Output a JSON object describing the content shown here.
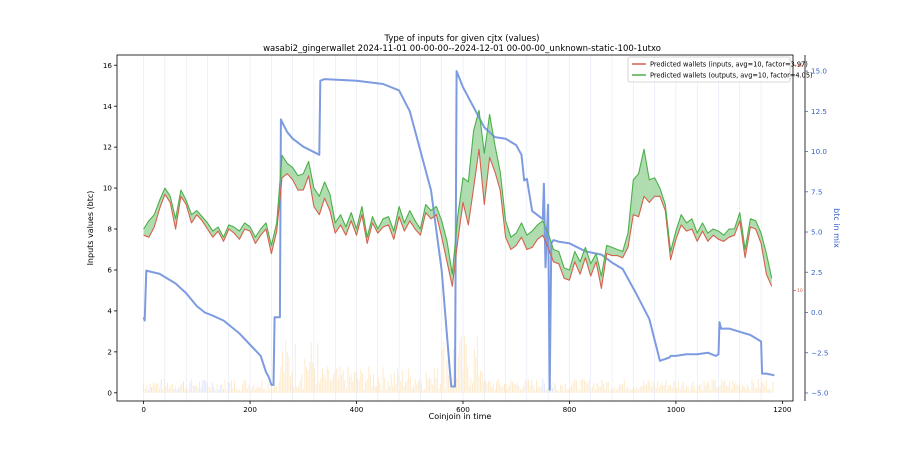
{
  "chart_data": {
    "type": "line",
    "title": "Type of inputs for given cjtx (values)",
    "subtitle": "wasabi2_gingerwallet 2024-11-01 00-00-00--2024-12-01 00-00-00_unknown-static-100-1utxo",
    "xlabel": "Coinjoin in time",
    "ylabel": "Inputs values (btc)",
    "ylabel_right": "btc in mix",
    "xlim": [
      -50,
      1220
    ],
    "ylim": [
      -0.4,
      16.5
    ],
    "ylim_right": [
      -5.5,
      16.0
    ],
    "x_ticks": [
      0,
      200,
      400,
      600,
      800,
      1000,
      1200
    ],
    "y_ticks": [
      0,
      2,
      4,
      6,
      8,
      10,
      12,
      14,
      16
    ],
    "y_ticks_right": [
      -5.0,
      -2.5,
      0.0,
      2.5,
      5.0,
      7.5,
      10.0,
      12.5,
      15.0
    ],
    "y_tick_labels_right": [
      "−5.0",
      "−2.5",
      "0.0",
      "2.5",
      "5.0",
      "7.5",
      "10.0",
      "12.5",
      "15.0"
    ],
    "right_axis_red_ticks": [
      {
        "label": "16",
        "y": 16.0
      },
      {
        "label": "10",
        "y": 5.0
      }
    ],
    "legend_position": "top-right",
    "colors": {
      "inputs": "#d6604d",
      "outputs": "#4daf4a",
      "fill": "#8fce8f",
      "mix": "#7d9be0",
      "bars": "#fdd9a0",
      "bars_blue": "#c8d2f8"
    },
    "series": [
      {
        "name": "Predicted wallets (inputs, avg=10, factor=3.97)",
        "color": "#d6604d",
        "x": [
          0,
          10,
          20,
          30,
          40,
          50,
          60,
          70,
          80,
          90,
          100,
          110,
          120,
          130,
          140,
          150,
          160,
          170,
          180,
          190,
          200,
          210,
          220,
          230,
          240,
          250,
          260,
          270,
          280,
          290,
          300,
          310,
          320,
          330,
          340,
          350,
          360,
          370,
          380,
          390,
          400,
          410,
          420,
          430,
          440,
          450,
          460,
          470,
          480,
          490,
          500,
          510,
          520,
          530,
          540,
          550,
          560,
          570,
          580,
          590,
          600,
          610,
          620,
          630,
          640,
          650,
          660,
          670,
          680,
          690,
          700,
          710,
          720,
          730,
          740,
          750,
          760,
          770,
          780,
          790,
          800,
          810,
          820,
          830,
          840,
          850,
          860,
          870,
          880,
          890,
          900,
          910,
          920,
          930,
          940,
          950,
          960,
          970,
          980,
          990,
          1000,
          1010,
          1020,
          1030,
          1040,
          1050,
          1060,
          1070,
          1080,
          1090,
          1100,
          1110,
          1120,
          1130,
          1140,
          1150,
          1160,
          1170,
          1180
        ],
        "values": [
          7.7,
          7.6,
          8.1,
          9.0,
          9.7,
          9.3,
          8.0,
          9.6,
          9.2,
          8.3,
          8.7,
          8.4,
          8.0,
          7.6,
          7.9,
          7.4,
          8.0,
          7.8,
          7.5,
          8.0,
          7.9,
          7.3,
          7.7,
          8.0,
          6.8,
          7.9,
          10.5,
          10.7,
          10.4,
          9.9,
          9.9,
          10.6,
          9.1,
          8.7,
          9.5,
          8.9,
          7.8,
          8.2,
          7.7,
          8.4,
          7.7,
          8.7,
          7.3,
          8.3,
          7.8,
          8.1,
          8.2,
          7.5,
          8.6,
          7.9,
          8.4,
          8.0,
          7.7,
          8.8,
          8.5,
          8.7,
          7.6,
          6.4,
          5.2,
          7.4,
          9.3,
          8.2,
          10.0,
          11.9,
          9.2,
          11.5,
          10.8,
          9.9,
          7.6,
          7.0,
          7.2,
          7.6,
          7.0,
          7.1,
          7.5,
          7.7,
          7.1,
          6.4,
          6.3,
          5.6,
          5.5,
          6.4,
          5.8,
          6.6,
          5.7,
          6.4,
          5.1,
          6.8,
          6.7,
          6.7,
          6.6,
          7.1,
          8.7,
          8.6,
          9.6,
          9.3,
          9.6,
          9.6,
          8.9,
          6.5,
          7.5,
          8.2,
          7.9,
          8.0,
          7.4,
          7.9,
          7.4,
          7.7,
          7.5,
          7.4,
          7.6,
          7.7,
          8.4,
          6.6,
          8.1,
          8.0,
          7.3,
          5.8,
          5.2
        ],
        "x_line_start": 0
      },
      {
        "name": "Predicted wallets (outputs, avg=10, factor=4.05)",
        "color": "#4daf4a",
        "x": [
          0,
          10,
          20,
          30,
          40,
          50,
          60,
          70,
          80,
          90,
          100,
          110,
          120,
          130,
          140,
          150,
          160,
          170,
          180,
          190,
          200,
          210,
          220,
          230,
          240,
          250,
          260,
          270,
          280,
          290,
          300,
          310,
          320,
          330,
          340,
          350,
          360,
          370,
          380,
          390,
          400,
          410,
          420,
          430,
          440,
          450,
          460,
          470,
          480,
          490,
          500,
          510,
          520,
          530,
          540,
          550,
          560,
          570,
          580,
          590,
          600,
          610,
          620,
          630,
          640,
          650,
          660,
          670,
          680,
          690,
          700,
          710,
          720,
          730,
          740,
          750,
          760,
          770,
          780,
          790,
          800,
          810,
          820,
          830,
          840,
          850,
          860,
          870,
          880,
          890,
          900,
          910,
          920,
          930,
          940,
          950,
          960,
          970,
          980,
          990,
          1000,
          1010,
          1020,
          1030,
          1040,
          1050,
          1060,
          1070,
          1080,
          1090,
          1100,
          1110,
          1120,
          1130,
          1140,
          1150,
          1160,
          1170,
          1180
        ],
        "values": [
          8.0,
          8.4,
          8.7,
          9.4,
          10.0,
          9.6,
          8.5,
          9.9,
          9.4,
          8.7,
          8.9,
          8.6,
          8.3,
          7.9,
          8.1,
          7.6,
          8.2,
          8.1,
          7.9,
          8.3,
          8.1,
          7.6,
          8.0,
          8.3,
          7.2,
          8.3,
          11.6,
          11.2,
          11.0,
          10.6,
          10.7,
          11.3,
          10.0,
          9.6,
          10.3,
          9.7,
          8.3,
          8.7,
          8.1,
          8.8,
          8.0,
          9.1,
          7.6,
          8.6,
          8.0,
          8.5,
          8.6,
          7.9,
          9.1,
          8.3,
          8.9,
          8.4,
          8.0,
          9.2,
          8.9,
          9.1,
          8.4,
          7.4,
          5.8,
          8.6,
          10.5,
          10.3,
          12.8,
          13.8,
          11.7,
          13.6,
          12.1,
          10.8,
          8.4,
          7.6,
          7.8,
          8.3,
          7.7,
          7.9,
          8.2,
          8.4,
          7.8,
          7.0,
          6.9,
          6.1,
          6.0,
          6.9,
          6.4,
          7.1,
          6.3,
          6.8,
          5.7,
          7.2,
          7.1,
          7.0,
          6.9,
          7.8,
          10.4,
          10.7,
          11.9,
          10.4,
          10.5,
          10.0,
          9.2,
          6.9,
          7.9,
          8.7,
          8.3,
          8.5,
          7.8,
          8.3,
          7.8,
          8.0,
          7.9,
          7.7,
          8.0,
          8.0,
          8.8,
          7.0,
          8.5,
          8.4,
          7.8,
          6.8,
          5.6
        ]
      },
      {
        "name": "btc in mix",
        "axis": "right",
        "color": "#7d9be0",
        "x": [
          0,
          2,
          5,
          30,
          60,
          80,
          100,
          115,
          130,
          150,
          180,
          220,
          230,
          235,
          240,
          244,
          246,
          250,
          256,
          258,
          262,
          270,
          280,
          300,
          330,
          332,
          340,
          400,
          450,
          480,
          500,
          540,
          560,
          575,
          578,
          585,
          588,
          600,
          640,
          660,
          680,
          700,
          710,
          715,
          720,
          730,
          750,
          752,
          755,
          760,
          763,
          766,
          770,
          780,
          800,
          830,
          860,
          880,
          900,
          925,
          950,
          970,
          988,
          990,
          1000,
          1020,
          1040,
          1060,
          1075,
          1080,
          1082,
          1085,
          1100,
          1140,
          1160,
          1162,
          1170,
          1185
        ],
        "values": [
          -0.3,
          -0.5,
          2.6,
          2.4,
          1.8,
          1.2,
          0.4,
          0.0,
          -0.2,
          -0.5,
          -1.3,
          -2.7,
          -3.7,
          -4.0,
          -4.5,
          -4.5,
          -0.3,
          -0.3,
          -0.3,
          12.0,
          11.7,
          11.2,
          10.8,
          10.3,
          9.8,
          14.4,
          14.5,
          14.4,
          14.2,
          13.8,
          12.5,
          7.6,
          2.6,
          -3.5,
          -4.6,
          -4.6,
          15.0,
          14.0,
          11.5,
          10.9,
          10.8,
          10.4,
          9.8,
          8.2,
          8.3,
          6.3,
          5.8,
          8.0,
          2.8,
          6.7,
          -4.8,
          4.3,
          4.5,
          4.4,
          4.3,
          3.8,
          3.6,
          3.1,
          2.7,
          1.2,
          -0.4,
          -3.0,
          -2.8,
          -2.7,
          -2.7,
          -2.6,
          -2.6,
          -2.5,
          -2.7,
          -2.6,
          -0.6,
          -1.0,
          -1.0,
          -1.4,
          -1.8,
          -3.8,
          -3.8,
          -3.9
        ]
      }
    ],
    "bars_note": "dense semi-transparent per-coinjoin input value bars along the bottom"
  }
}
